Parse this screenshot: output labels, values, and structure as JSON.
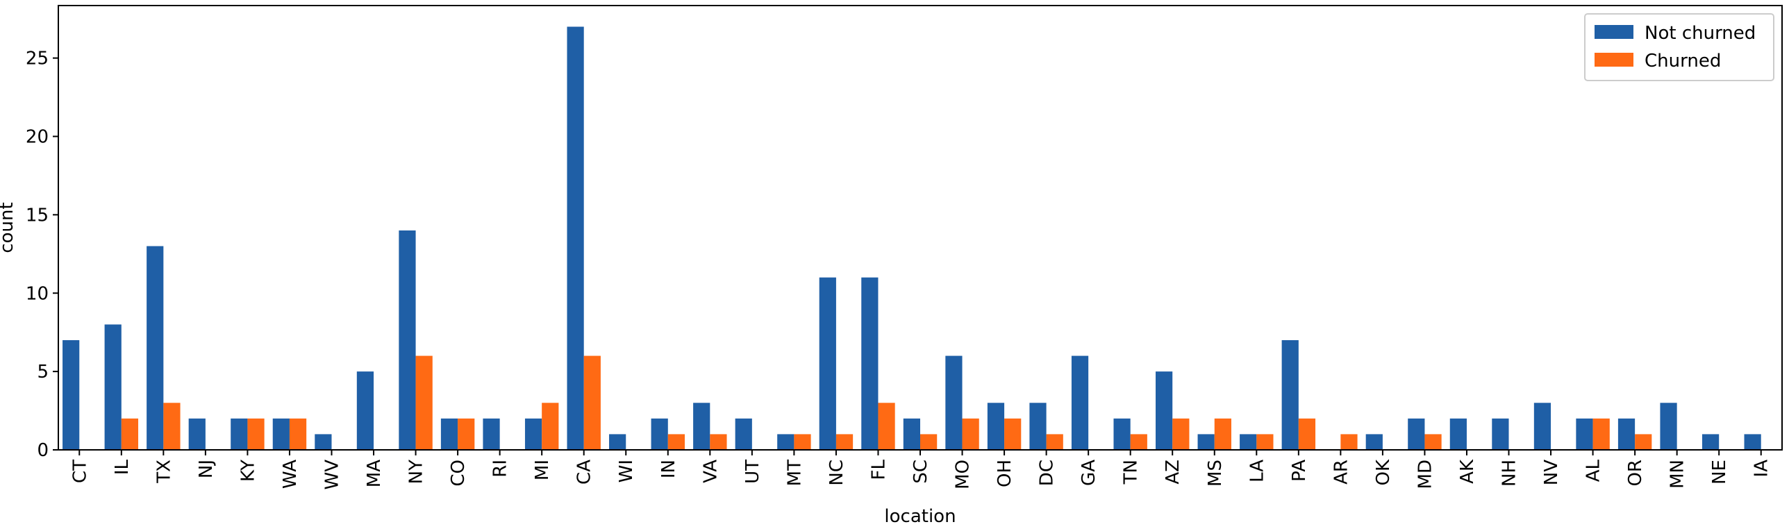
{
  "chart_data": {
    "type": "bar",
    "title": "",
    "xlabel": "location",
    "ylabel": "count",
    "ylim": [
      0,
      28.35
    ],
    "yticks": [
      0,
      5,
      10,
      15,
      20,
      25
    ],
    "grid": false,
    "legend_position": "top-right",
    "categories": [
      "CT",
      "IL",
      "TX",
      "NJ",
      "KY",
      "WA",
      "WV",
      "MA",
      "NY",
      "CO",
      "RI",
      "MI",
      "CA",
      "WI",
      "IN",
      "VA",
      "UT",
      "MT",
      "NC",
      "FL",
      "SC",
      "MO",
      "OH",
      "DC",
      "GA",
      "TN",
      "AZ",
      "MS",
      "LA",
      "PA",
      "AR",
      "OK",
      "MD",
      "AK",
      "NH",
      "NV",
      "AL",
      "OR",
      "MN",
      "NE",
      "IA"
    ],
    "series": [
      {
        "name": "Not churned",
        "color": "#1f5fa6",
        "values": [
          7,
          8,
          13,
          2,
          2,
          2,
          1,
          5,
          14,
          2,
          2,
          2,
          27,
          1,
          2,
          3,
          2,
          1,
          11,
          11,
          2,
          6,
          3,
          3,
          6,
          2,
          5,
          1,
          1,
          7,
          0,
          1,
          2,
          2,
          2,
          3,
          2,
          2,
          3,
          1,
          1
        ]
      },
      {
        "name": "Churned",
        "color": "#ff6a14",
        "values": [
          0,
          2,
          3,
          0,
          2,
          2,
          0,
          0,
          6,
          2,
          0,
          3,
          6,
          0,
          1,
          1,
          0,
          1,
          1,
          3,
          1,
          2,
          2,
          1,
          0,
          1,
          2,
          2,
          1,
          2,
          1,
          0,
          1,
          0,
          0,
          0,
          2,
          1,
          0,
          0,
          0
        ]
      }
    ]
  }
}
